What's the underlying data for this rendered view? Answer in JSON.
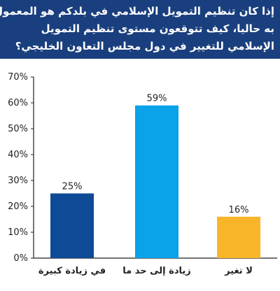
{
  "title_lines": [
    "إذا كان تنظيم التمويل الإسلامي في بلدكم هو المعمول",
    "به حاليا، كيف تتوقعون مستوى تنظيم التمويل",
    "الإسلامي للتغيير في دول مجلس التعاون الخليجي؟"
  ],
  "colors": {
    "header_bg": "#1a3f7e",
    "axis": "#231f20",
    "bar_1": "#0e4a96",
    "bar_2": "#0aa2e8",
    "bar_3": "#f9b52a"
  },
  "chart_data": {
    "type": "bar",
    "categories": [
      "في زيادة كبيرة",
      "زيادة إلى حد ما",
      "لا تغير"
    ],
    "values": [
      25,
      59,
      16
    ],
    "value_labels": [
      "25%",
      "59%",
      "16%"
    ],
    "ylim": [
      0,
      70
    ],
    "yticks": [
      0,
      10,
      20,
      30,
      40,
      50,
      60,
      70
    ],
    "ytick_labels": [
      "0%",
      "10%",
      "20%",
      "30%",
      "40%",
      "50%",
      "60%",
      "70%"
    ],
    "grid": false
  }
}
